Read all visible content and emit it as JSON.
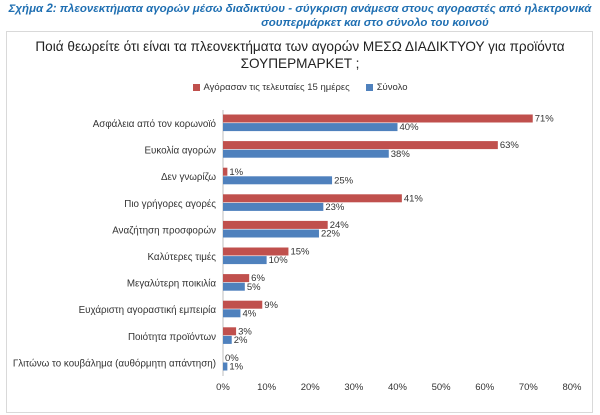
{
  "caption": {
    "line1": "Σχήμα 2: πλεονεκτήματα αγορών μέσω διαδικτύου - σύγκριση ανάμεσα στους αγοραστές από ηλεκτρονικά",
    "line2": "σουπερμάρκετ και στο σύνολο του κοινού"
  },
  "chart_data": {
    "type": "bar",
    "orientation": "horizontal",
    "title_line1": "Ποιά θεωρείτε ότι είναι τα πλεονεκτήματα των αγορών ΜΕΣΩ ΔΙΑΔΙΚΤΥΟΥ για προϊόντα",
    "title_line2": "ΣΟΥΠΕΡΜΑΡΚΕΤ ;",
    "categories": [
      "Ασφάλεια από τον κορωνοϊό",
      "Ευκολία αγορών",
      "Δεν γνωρίζω",
      "Πιο γρήγορες αγορές",
      "Αναζήτηση προσφορών",
      "Καλύτερες τιμές",
      "Μεγαλύτερη ποικιλία",
      "Ευχάριστη αγοραστική εμπειρία",
      "Ποιότητα προϊόντων",
      "Γλιτώνω το κουβάλημα (αυθόρμητη απάντηση)"
    ],
    "series": [
      {
        "name": "Αγόρασαν τις τελευταίες 15 ημέρες",
        "color": "#c0504d",
        "values": [
          71,
          63,
          1,
          41,
          24,
          15,
          6,
          9,
          3,
          0
        ]
      },
      {
        "name": "Σύνολο",
        "color": "#4f81bd",
        "values": [
          40,
          38,
          25,
          23,
          22,
          10,
          5,
          4,
          2,
          1
        ]
      }
    ],
    "xlim": [
      0,
      80
    ],
    "xticks": [
      0,
      10,
      20,
      30,
      40,
      50,
      60,
      70,
      80
    ],
    "value_suffix": "%",
    "legend_position": "top",
    "grid": false
  }
}
